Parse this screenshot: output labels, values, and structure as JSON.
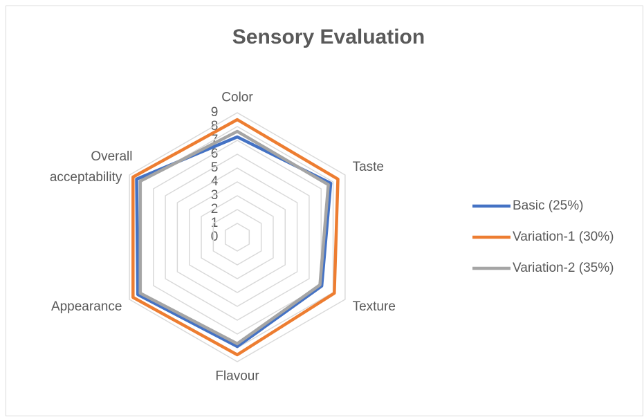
{
  "chart_data": {
    "type": "radar",
    "title": "Sensory Evaluation",
    "categories": [
      "Color",
      "Taste",
      "Texture",
      "Flavour",
      "Appearance",
      "Overall acceptability"
    ],
    "series": [
      {
        "name": "Basic (25%)",
        "color": "#4472c4",
        "values": [
          7.25,
          7.8,
          7.05,
          7.9,
          8.3,
          8.4
        ]
      },
      {
        "name": "Variation-1  (30%)",
        "color": "#ed7d31",
        "values": [
          8.5,
          8.4,
          8.1,
          8.5,
          8.7,
          8.7
        ]
      },
      {
        "name": "Variation-2  (35%)",
        "color": "#a5a5a5",
        "values": [
          7.65,
          7.6,
          6.9,
          7.7,
          8.1,
          8.1
        ]
      }
    ],
    "ylim": [
      0,
      9
    ],
    "yticks": [
      0,
      1,
      2,
      3,
      4,
      5,
      6,
      7,
      8,
      9
    ],
    "grid": true,
    "legend": "right"
  }
}
